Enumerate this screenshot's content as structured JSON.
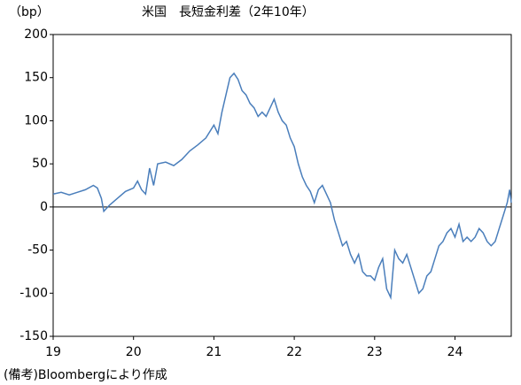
{
  "chart_data": {
    "type": "line",
    "title": "米国　長短金利差（2年10年）",
    "y_label": "（bp）",
    "note": "(備考)Bloombergにより作成",
    "xlim": [
      19,
      24.7
    ],
    "xticks": [
      19,
      20,
      21,
      22,
      23,
      24
    ],
    "ylim": [
      -150,
      200
    ],
    "yticks": [
      -150,
      -100,
      -50,
      0,
      50,
      100,
      150,
      200
    ],
    "x": [
      19.0,
      19.1,
      19.2,
      19.3,
      19.4,
      19.5,
      19.55,
      19.6,
      19.63,
      19.7,
      19.8,
      19.9,
      20.0,
      20.05,
      20.1,
      20.15,
      20.2,
      20.25,
      20.3,
      20.4,
      20.5,
      20.6,
      20.7,
      20.8,
      20.9,
      21.0,
      21.05,
      21.1,
      21.15,
      21.2,
      21.25,
      21.3,
      21.35,
      21.4,
      21.45,
      21.5,
      21.55,
      21.6,
      21.65,
      21.7,
      21.75,
      21.8,
      21.85,
      21.9,
      21.95,
      22.0,
      22.05,
      22.1,
      22.15,
      22.2,
      22.25,
      22.3,
      22.35,
      22.4,
      22.45,
      22.5,
      22.55,
      22.6,
      22.65,
      22.7,
      22.75,
      22.8,
      22.85,
      22.9,
      22.95,
      23.0,
      23.05,
      23.1,
      23.15,
      23.2,
      23.25,
      23.3,
      23.35,
      23.4,
      23.45,
      23.5,
      23.55,
      23.6,
      23.65,
      23.7,
      23.75,
      23.8,
      23.85,
      23.9,
      23.95,
      24.0,
      24.05,
      24.1,
      24.15,
      24.2,
      24.25,
      24.3,
      24.35,
      24.4,
      24.45,
      24.5,
      24.55,
      24.6,
      24.65,
      24.68,
      24.7
    ],
    "series": [
      {
        "name": "長短金利差",
        "color": "#4a7ebb",
        "values": [
          15,
          17,
          14,
          17,
          20,
          25,
          22,
          10,
          -5,
          2,
          10,
          18,
          22,
          30,
          20,
          15,
          45,
          25,
          50,
          52,
          48,
          55,
          65,
          72,
          80,
          95,
          85,
          110,
          130,
          150,
          155,
          148,
          135,
          130,
          120,
          115,
          105,
          110,
          105,
          115,
          125,
          110,
          100,
          95,
          80,
          70,
          50,
          35,
          25,
          18,
          5,
          20,
          25,
          15,
          5,
          -15,
          -30,
          -45,
          -40,
          -55,
          -65,
          -55,
          -75,
          -80,
          -80,
          -85,
          -70,
          -60,
          -95,
          -105,
          -50,
          -60,
          -65,
          -55,
          -70,
          -85,
          -100,
          -95,
          -80,
          -75,
          -60,
          -45,
          -40,
          -30,
          -25,
          -35,
          -20,
          -40,
          -35,
          -40,
          -35,
          -25,
          -30,
          -40,
          -45,
          -40,
          -25,
          -10,
          5,
          20,
          5
        ]
      }
    ]
  }
}
